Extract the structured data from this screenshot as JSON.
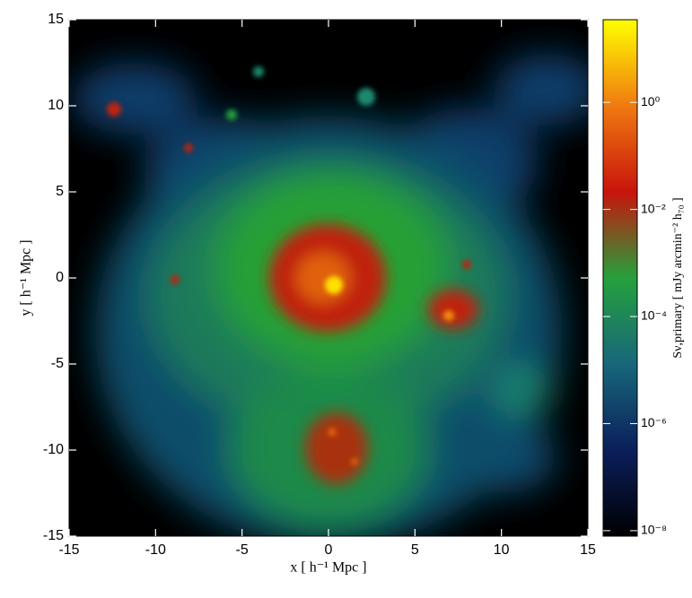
{
  "chart_data": {
    "type": "image",
    "xlabel": "x [ h⁻¹ Mpc ]",
    "ylabel": "y [ h⁻¹ Mpc ]",
    "colorbar_label": "Sν,primary [ mJy arcmin⁻² h₇₀ ]",
    "xlim": [
      -15,
      15
    ],
    "xticks": [
      -15,
      -10,
      -5,
      0,
      5,
      10,
      15
    ],
    "ylim": [
      -15,
      15
    ],
    "yticks": [
      -15,
      -10,
      -5,
      0,
      5,
      10,
      15
    ],
    "clim": [
      7.9e-09,
      35
    ],
    "clog": true,
    "cticks": [
      {
        "value": 1e-08,
        "label": "10⁻⁸"
      },
      {
        "value": 1e-06,
        "label": "10⁻⁶"
      },
      {
        "value": 0.0001,
        "label": "10⁻⁴"
      },
      {
        "value": 0.01,
        "label": "10⁻²"
      },
      {
        "value": 1,
        "label": "10⁰"
      }
    ],
    "colormap": [
      "#000000",
      "#0b1f5c",
      "#17677a",
      "#26a03c",
      "#c8140c",
      "#f07a10",
      "#ffff00"
    ]
  }
}
